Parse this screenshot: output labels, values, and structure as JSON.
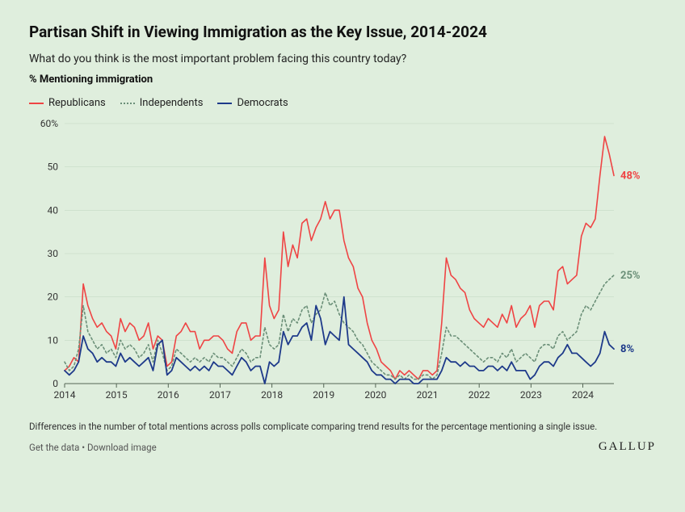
{
  "title": "Partisan Shift in Viewing Immigration as the Key Issue, 2014-2024",
  "subtitle": "What do you think is the most important problem facing this country today?",
  "metric_label": "% Mentioning immigration",
  "legend": {
    "rep": "Republicans",
    "ind": "Independents",
    "dem": "Democrats"
  },
  "chart": {
    "type": "line",
    "background": "#dfeedd",
    "grid_color": "#88a088",
    "axis_color": "#333333",
    "ylim": [
      0,
      60
    ],
    "yticks": [
      0,
      10,
      20,
      30,
      40,
      50,
      60
    ],
    "ytick_suffix": "%",
    "xlim": [
      2014,
      2024.6
    ],
    "xticks": [
      2014,
      2015,
      2016,
      2017,
      2018,
      2019,
      2020,
      2021,
      2022,
      2023,
      2024
    ],
    "series": {
      "rep": {
        "color": "#ef4444",
        "stroke_width": 1.6,
        "dash": "none",
        "end_label": "48%",
        "y": [
          3,
          4,
          6,
          5,
          23,
          18,
          15,
          13,
          14,
          12,
          11,
          8,
          15,
          12,
          14,
          13,
          10,
          11,
          14,
          8,
          11,
          10,
          4,
          5,
          11,
          12,
          14,
          12,
          12,
          8,
          10,
          10,
          11,
          11,
          10,
          8,
          7,
          12,
          14,
          14,
          10,
          11,
          11,
          29,
          18,
          15,
          17,
          35,
          27,
          32,
          29,
          37,
          38,
          33,
          36,
          38,
          42,
          38,
          40,
          40,
          33,
          29,
          27,
          22,
          20,
          14,
          10,
          8,
          5,
          4,
          3,
          1,
          3,
          2,
          3,
          2,
          1,
          3,
          3,
          2,
          3,
          14,
          29,
          25,
          24,
          22,
          21,
          17,
          15,
          14,
          13,
          15,
          14,
          13,
          16,
          14,
          18,
          13,
          15,
          16,
          18,
          13,
          18,
          19,
          19,
          17,
          26,
          27,
          23,
          24,
          25,
          34,
          37,
          36,
          38,
          48,
          57,
          53,
          48
        ]
      },
      "ind": {
        "color": "#6b8f78",
        "stroke_width": 1.6,
        "dash": "2.5 3",
        "end_label": "25%",
        "y": [
          5,
          3,
          4,
          8,
          18,
          12,
          10,
          8,
          9,
          7,
          8,
          6,
          10,
          8,
          9,
          8,
          6,
          7,
          9,
          5,
          10,
          7,
          3,
          4,
          8,
          7,
          6,
          5,
          6,
          5,
          6,
          5,
          7,
          6,
          6,
          5,
          4,
          6,
          8,
          7,
          5,
          6,
          6,
          13,
          9,
          8,
          9,
          16,
          12,
          15,
          14,
          17,
          18,
          14,
          16,
          17,
          21,
          18,
          19,
          16,
          14,
          13,
          12,
          10,
          9,
          7,
          5,
          4,
          3,
          2,
          2,
          1,
          2,
          1,
          2,
          1,
          1,
          2,
          2,
          1,
          2,
          7,
          13,
          11,
          11,
          10,
          9,
          8,
          7,
          6,
          5,
          6,
          6,
          5,
          7,
          6,
          8,
          5,
          6,
          7,
          6,
          5,
          8,
          9,
          9,
          8,
          11,
          12,
          10,
          11,
          12,
          16,
          18,
          17,
          19,
          21,
          23,
          24,
          25
        ]
      },
      "dem": {
        "color": "#1e3a8a",
        "stroke_width": 1.8,
        "dash": "none",
        "end_label": "8%",
        "y": [
          3,
          2,
          3,
          5,
          11,
          8,
          7,
          5,
          6,
          5,
          5,
          4,
          7,
          5,
          6,
          5,
          4,
          5,
          6,
          3,
          9,
          10,
          2,
          3,
          6,
          5,
          4,
          3,
          4,
          3,
          4,
          3,
          5,
          4,
          4,
          3,
          2,
          4,
          6,
          5,
          3,
          4,
          4,
          0,
          5,
          4,
          5,
          12,
          9,
          11,
          11,
          13,
          14,
          10,
          18,
          15,
          9,
          12,
          11,
          10,
          20,
          9,
          8,
          7,
          6,
          5,
          3,
          2,
          2,
          1,
          1,
          0,
          1,
          1,
          1,
          0,
          0,
          1,
          1,
          1,
          1,
          3,
          6,
          5,
          5,
          4,
          5,
          4,
          4,
          3,
          3,
          4,
          4,
          3,
          4,
          3,
          5,
          3,
          3,
          3,
          1,
          2,
          4,
          5,
          5,
          4,
          6,
          7,
          9,
          7,
          7,
          6,
          5,
          4,
          5,
          7,
          12,
          9,
          8
        ]
      }
    }
  },
  "footnote": "Differences in the number of total mentions across polls complicate comparing trend results for the percentage mentioning a single issue.",
  "links": {
    "get_data": "Get the data",
    "sep": "•",
    "download": "Download image"
  },
  "brand": "GALLUP"
}
